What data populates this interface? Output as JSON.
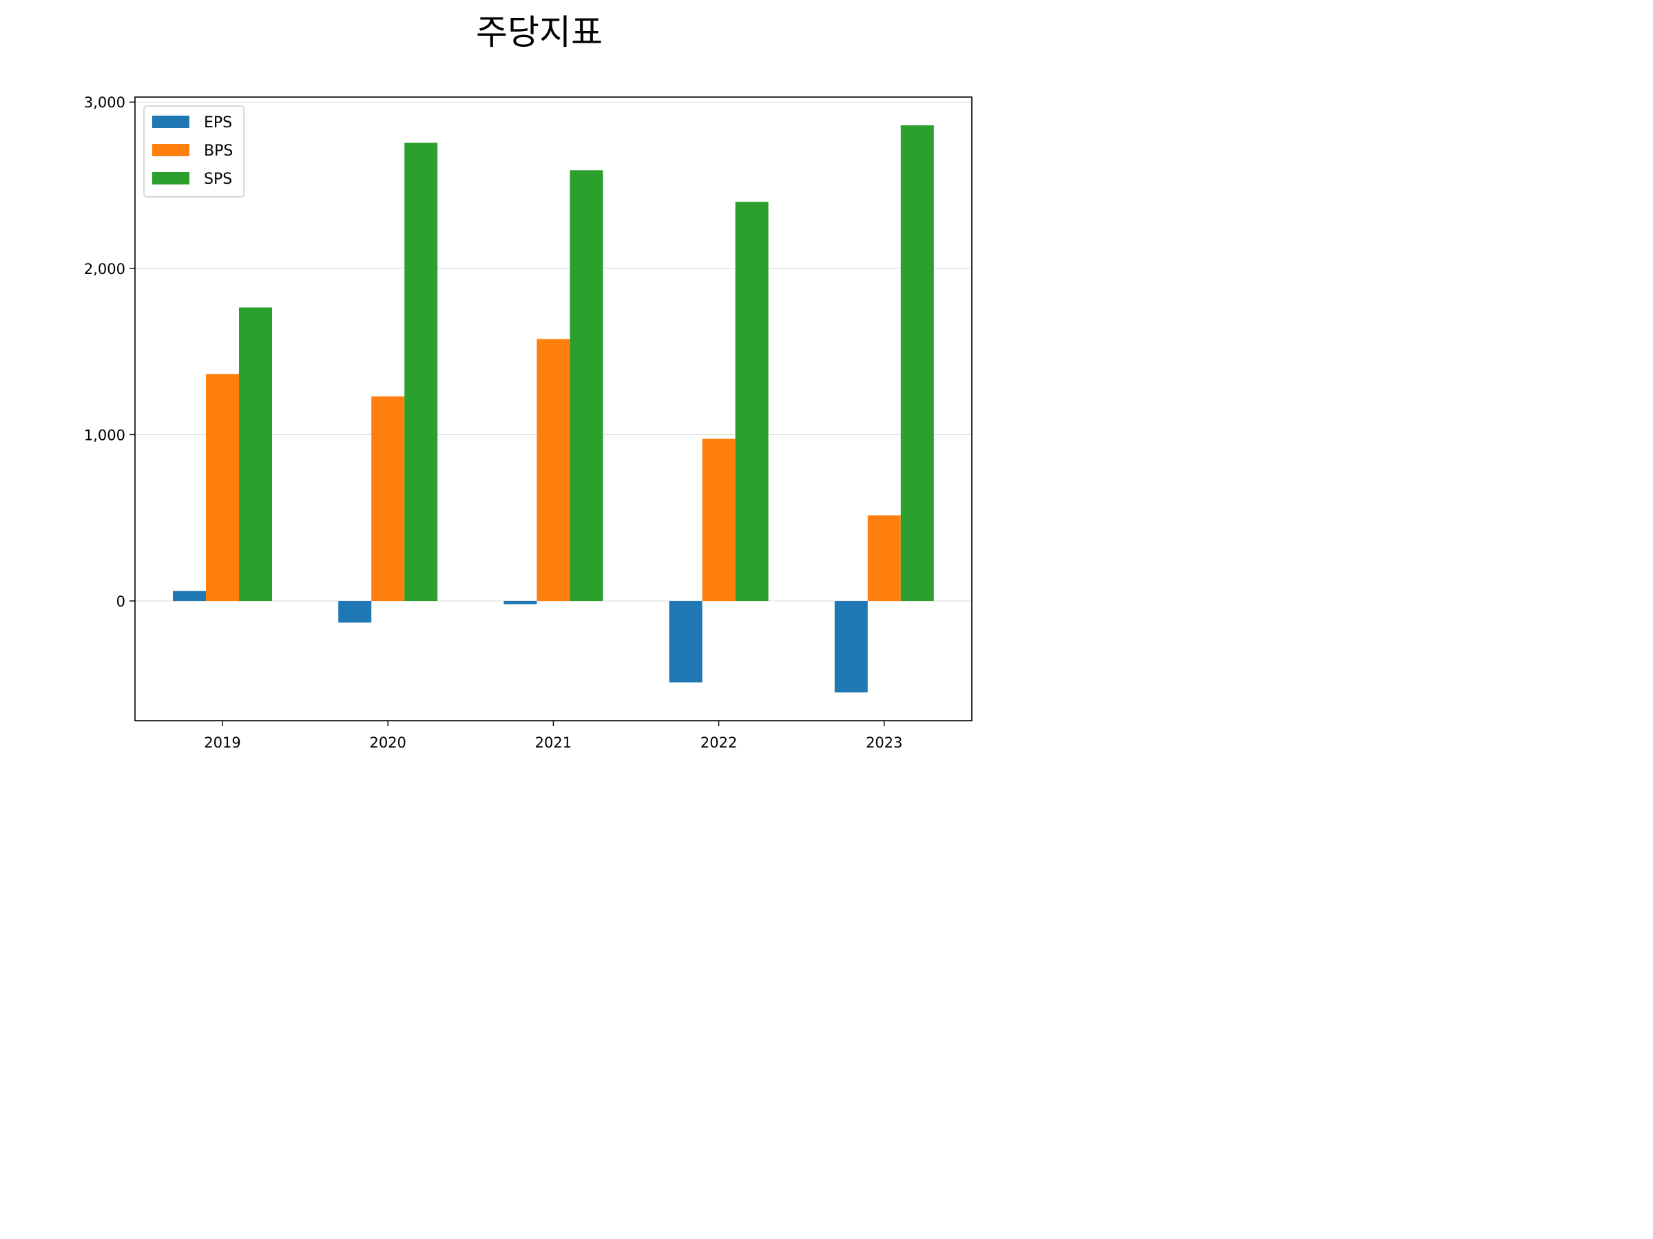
{
  "chart_data": {
    "type": "bar",
    "title": "주당지표",
    "xlabel": "",
    "ylabel": "",
    "categories": [
      "2019",
      "2020",
      "2021",
      "2022",
      "2023"
    ],
    "series": [
      {
        "name": "EPS",
        "color": "#1f77b4",
        "values": [
          60,
          -130,
          -20,
          -490,
          -550
        ]
      },
      {
        "name": "BPS",
        "color": "#ff7f0e",
        "values": [
          1365,
          1230,
          1575,
          975,
          515
        ]
      },
      {
        "name": "SPS",
        "color": "#2ca02c",
        "values": [
          1765,
          2755,
          2590,
          2400,
          2860
        ]
      }
    ],
    "ylim": [
      -720,
      3030
    ],
    "yticks": [
      0,
      1000,
      2000,
      3000
    ],
    "ytick_labels": [
      "0",
      "1,000",
      "2,000",
      "3,000"
    ],
    "grid": "y",
    "legend": "top-left"
  }
}
